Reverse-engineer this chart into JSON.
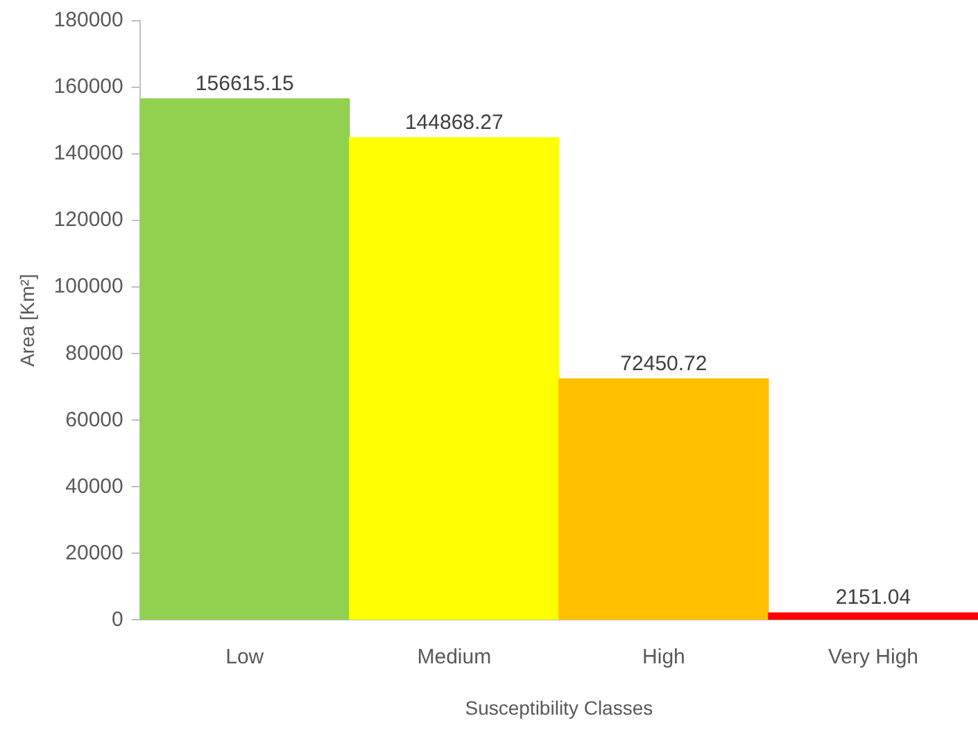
{
  "chart_data": {
    "type": "bar",
    "xlabel": "Susceptibility Classes",
    "ylabel": "Area [Km²]",
    "categories": [
      "Low",
      "Medium",
      "High",
      "Very High"
    ],
    "values": [
      156615.15,
      144868.27,
      72450.72,
      2151.04
    ],
    "colors": [
      "#92d050",
      "#ffff00",
      "#ffc000",
      "#ff0000"
    ],
    "ylim": [
      0,
      180000
    ],
    "yticks": [
      0,
      20000,
      40000,
      60000,
      80000,
      100000,
      120000,
      140000,
      160000,
      180000
    ],
    "data_labels": true,
    "grid": false,
    "legend": false
  }
}
